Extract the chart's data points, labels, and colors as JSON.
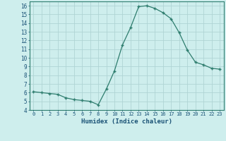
{
  "x": [
    0,
    1,
    2,
    3,
    4,
    5,
    6,
    7,
    8,
    9,
    10,
    11,
    12,
    13,
    14,
    15,
    16,
    17,
    18,
    19,
    20,
    21,
    22,
    23
  ],
  "y": [
    6.1,
    6.0,
    5.9,
    5.8,
    5.4,
    5.2,
    5.1,
    5.0,
    4.6,
    6.4,
    8.5,
    11.5,
    13.5,
    15.9,
    16.0,
    15.7,
    15.2,
    14.5,
    12.9,
    10.9,
    9.5,
    9.2,
    8.8,
    8.7
  ],
  "xlabel": "Humidex (Indice chaleur)",
  "ylim": [
    4,
    16.5
  ],
  "yticks": [
    4,
    5,
    6,
    7,
    8,
    9,
    10,
    11,
    12,
    13,
    14,
    15,
    16
  ],
  "xtick_labels": [
    "0",
    "1",
    "2",
    "3",
    "4",
    "5",
    "6",
    "7",
    "8",
    "9",
    "10",
    "11",
    "12",
    "13",
    "14",
    "15",
    "16",
    "17",
    "18",
    "19",
    "20",
    "21",
    "22",
    "23"
  ],
  "line_color": "#2e7d6e",
  "marker": "+",
  "marker_size": 3.5,
  "marker_lw": 1.0,
  "bg_color": "#ceeeed",
  "grid_color": "#b0d4d4",
  "tick_label_color": "#1a5276",
  "xlabel_color": "#1a5276",
  "spine_color": "#2e7d6e"
}
